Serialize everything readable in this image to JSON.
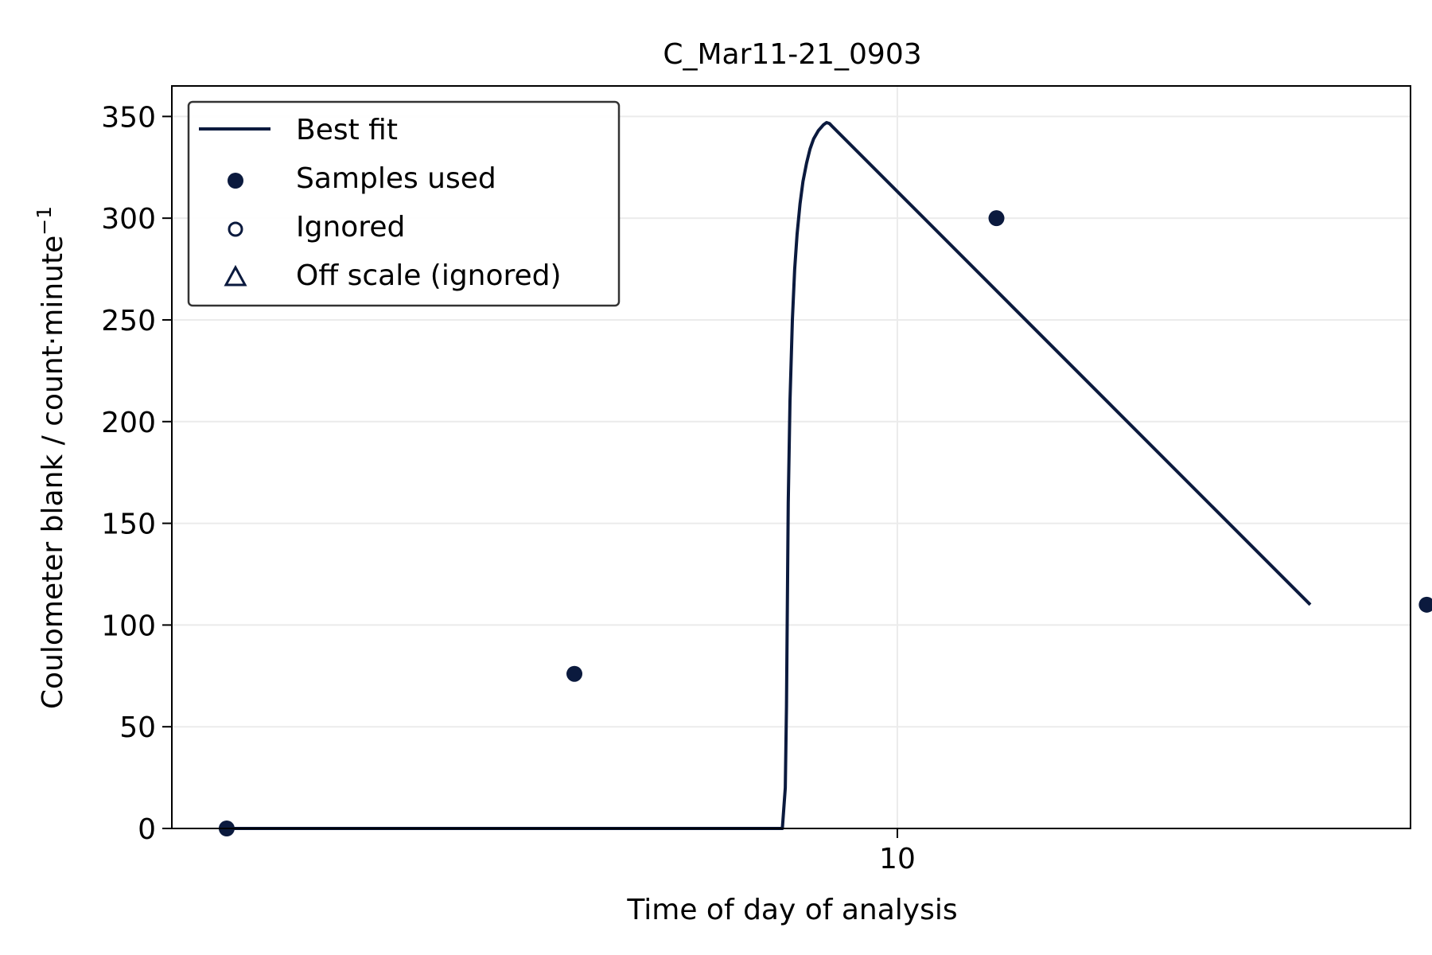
{
  "chart_data": {
    "type": "scatter",
    "title": "C_Mar11-21_0903",
    "xlabel": "Time of day of analysis",
    "ylabel_main": "Coulometer blank / count·minute",
    "ylabel_superscript": "−1",
    "xlim": [
      8.77,
      10.87
    ],
    "ylim": [
      0,
      365
    ],
    "x_ticks": [
      10
    ],
    "x_tick_labels": [
      "10"
    ],
    "y_ticks": [
      0,
      50,
      100,
      150,
      200,
      250,
      300,
      350
    ],
    "y_tick_labels": [
      "0",
      "50",
      "100",
      "150",
      "200",
      "250",
      "300",
      "350"
    ],
    "grid": true,
    "legend_position": "upper-left",
    "legend": {
      "best_fit": "Best fit",
      "samples_used": "Samples used",
      "ignored": "Ignored",
      "off_scale": "Off scale (ignored)"
    },
    "colors": {
      "series": "#0b1a3e",
      "grid": "#ebebeb",
      "axis": "#000000"
    },
    "series": [
      {
        "name": "Best fit",
        "kind": "line",
        "x": [
          8.863,
          9.3,
          9.6,
          9.805,
          9.81,
          9.812,
          9.8135,
          9.815,
          9.818,
          9.822,
          9.826,
          9.83,
          9.835,
          9.84,
          9.846,
          9.852,
          9.858,
          9.866,
          9.875,
          9.88,
          9.885,
          9.89,
          10.7
        ],
        "y": [
          0,
          0,
          0,
          0,
          20,
          60,
          110,
          160,
          210,
          250,
          275,
          292,
          307,
          318,
          327,
          334,
          339,
          343,
          346,
          347,
          346.5,
          345,
          110
        ]
      },
      {
        "name": "Samples used",
        "kind": "points",
        "x": [
          8.863,
          9.4525,
          10.168,
          10.8975
        ],
        "y": [
          0,
          76,
          300,
          110
        ]
      },
      {
        "name": "Ignored",
        "kind": "points",
        "x": [],
        "y": []
      },
      {
        "name": "Off scale (ignored)",
        "kind": "points",
        "x": [],
        "y": []
      }
    ]
  }
}
